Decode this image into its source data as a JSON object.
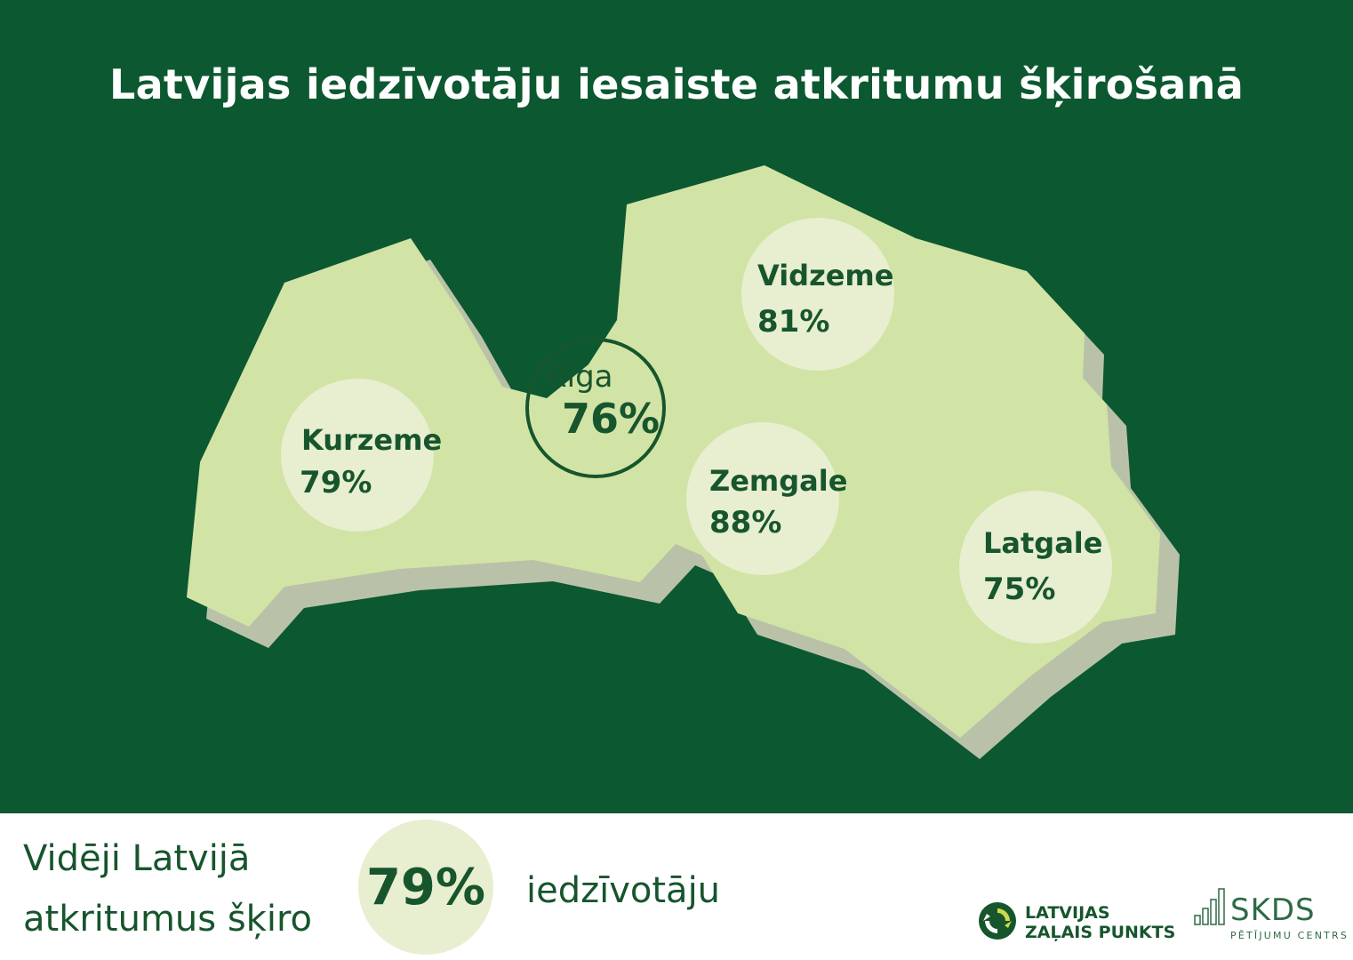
{
  "title": "Latvijas iedzīvotāju iesaiste atkritumu šķirošanā",
  "regions": [
    {
      "name": "Kurzeme",
      "value": "79%"
    },
    {
      "name": "Rīga",
      "value": "76%"
    },
    {
      "name": "Vidzeme",
      "value": "81%"
    },
    {
      "name": "Zemgale",
      "value": "88%"
    },
    {
      "name": "Latgale",
      "value": "75%"
    }
  ],
  "summary": {
    "line1": "Vidēji Latvijā",
    "line2": "atkritumus šķiro",
    "value": "79%",
    "suffix": "iedzīvotāju"
  },
  "logos": {
    "lzp_line1": "LATVIJAS",
    "lzp_line2": "ZAĻAIS PUNKTS",
    "skds_name": "SKDS",
    "skds_sub": "PĒTĪJUMU CENTRS"
  },
  "colors": {
    "background": "#0c5830",
    "map_fill": "#d2e3a6",
    "map_shadow": "#b9c2a8",
    "circle_fill": "#e8eed0",
    "text_dark": "#17552d"
  }
}
